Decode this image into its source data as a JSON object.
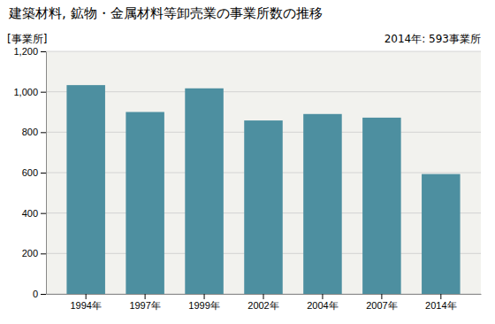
{
  "chart_data": {
    "type": "bar",
    "title": "建築材料, 鉱物・金属材料等卸売業の事業所数の推移",
    "ylabel": "[事業所]",
    "annotation": "2014年: 593事業所",
    "categories": [
      "1994年",
      "1997年",
      "1999年",
      "2002年",
      "2004年",
      "2007年",
      "2014年"
    ],
    "values": [
      1033,
      900,
      1017,
      858,
      890,
      872,
      593
    ],
    "color": "#4d8fa0",
    "ylim": [
      0,
      1200
    ],
    "yticks": [
      0,
      200,
      400,
      600,
      800,
      {
        "value": 1000,
        "label": "1,000"
      },
      {
        "value": 1200,
        "label": "1,200"
      }
    ],
    "grid": true
  }
}
